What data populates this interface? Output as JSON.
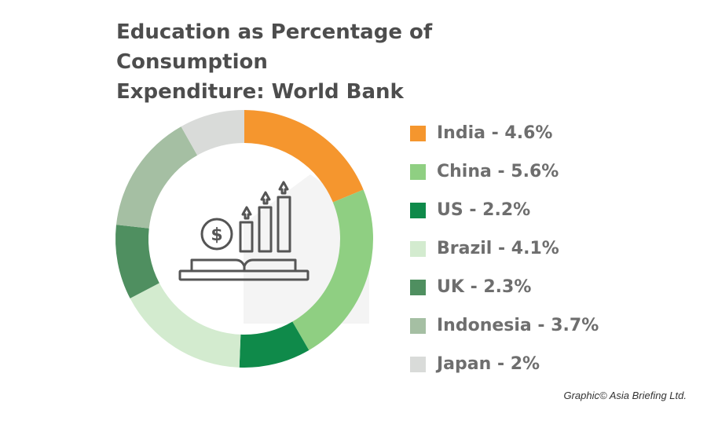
{
  "chart_data": {
    "type": "pie",
    "title_lines": [
      "Education as Percentage of Consumption",
      "Expenditure: World Bank"
    ],
    "slices": [
      {
        "label": "India - 4.6%",
        "name": "India",
        "value": 4.6,
        "color": "#f5962e"
      },
      {
        "label": "China - 5.6%",
        "name": "China",
        "value": 5.6,
        "color": "#8fcf82"
      },
      {
        "label": "US - 2.2%",
        "name": "US",
        "value": 2.2,
        "color": "#0f8a4a"
      },
      {
        "label": "Brazil - 4.1%",
        "name": "Brazil",
        "value": 4.1,
        "color": "#d3ebcf"
      },
      {
        "label": "UK - 2.3%",
        "name": "UK",
        "value": 2.3,
        "color": "#4f8f60"
      },
      {
        "label": "Indonesia - 3.7%",
        "name": "Indonesia",
        "value": 3.7,
        "color": "#a5bfa3"
      },
      {
        "label": "Japan - 2%",
        "name": "Japan",
        "value": 2.0,
        "color": "#d9dbd9"
      }
    ],
    "legend_position": "right",
    "center_icon": "education-growth-icon"
  },
  "credit": "Graphic© Asia Briefing Ltd."
}
